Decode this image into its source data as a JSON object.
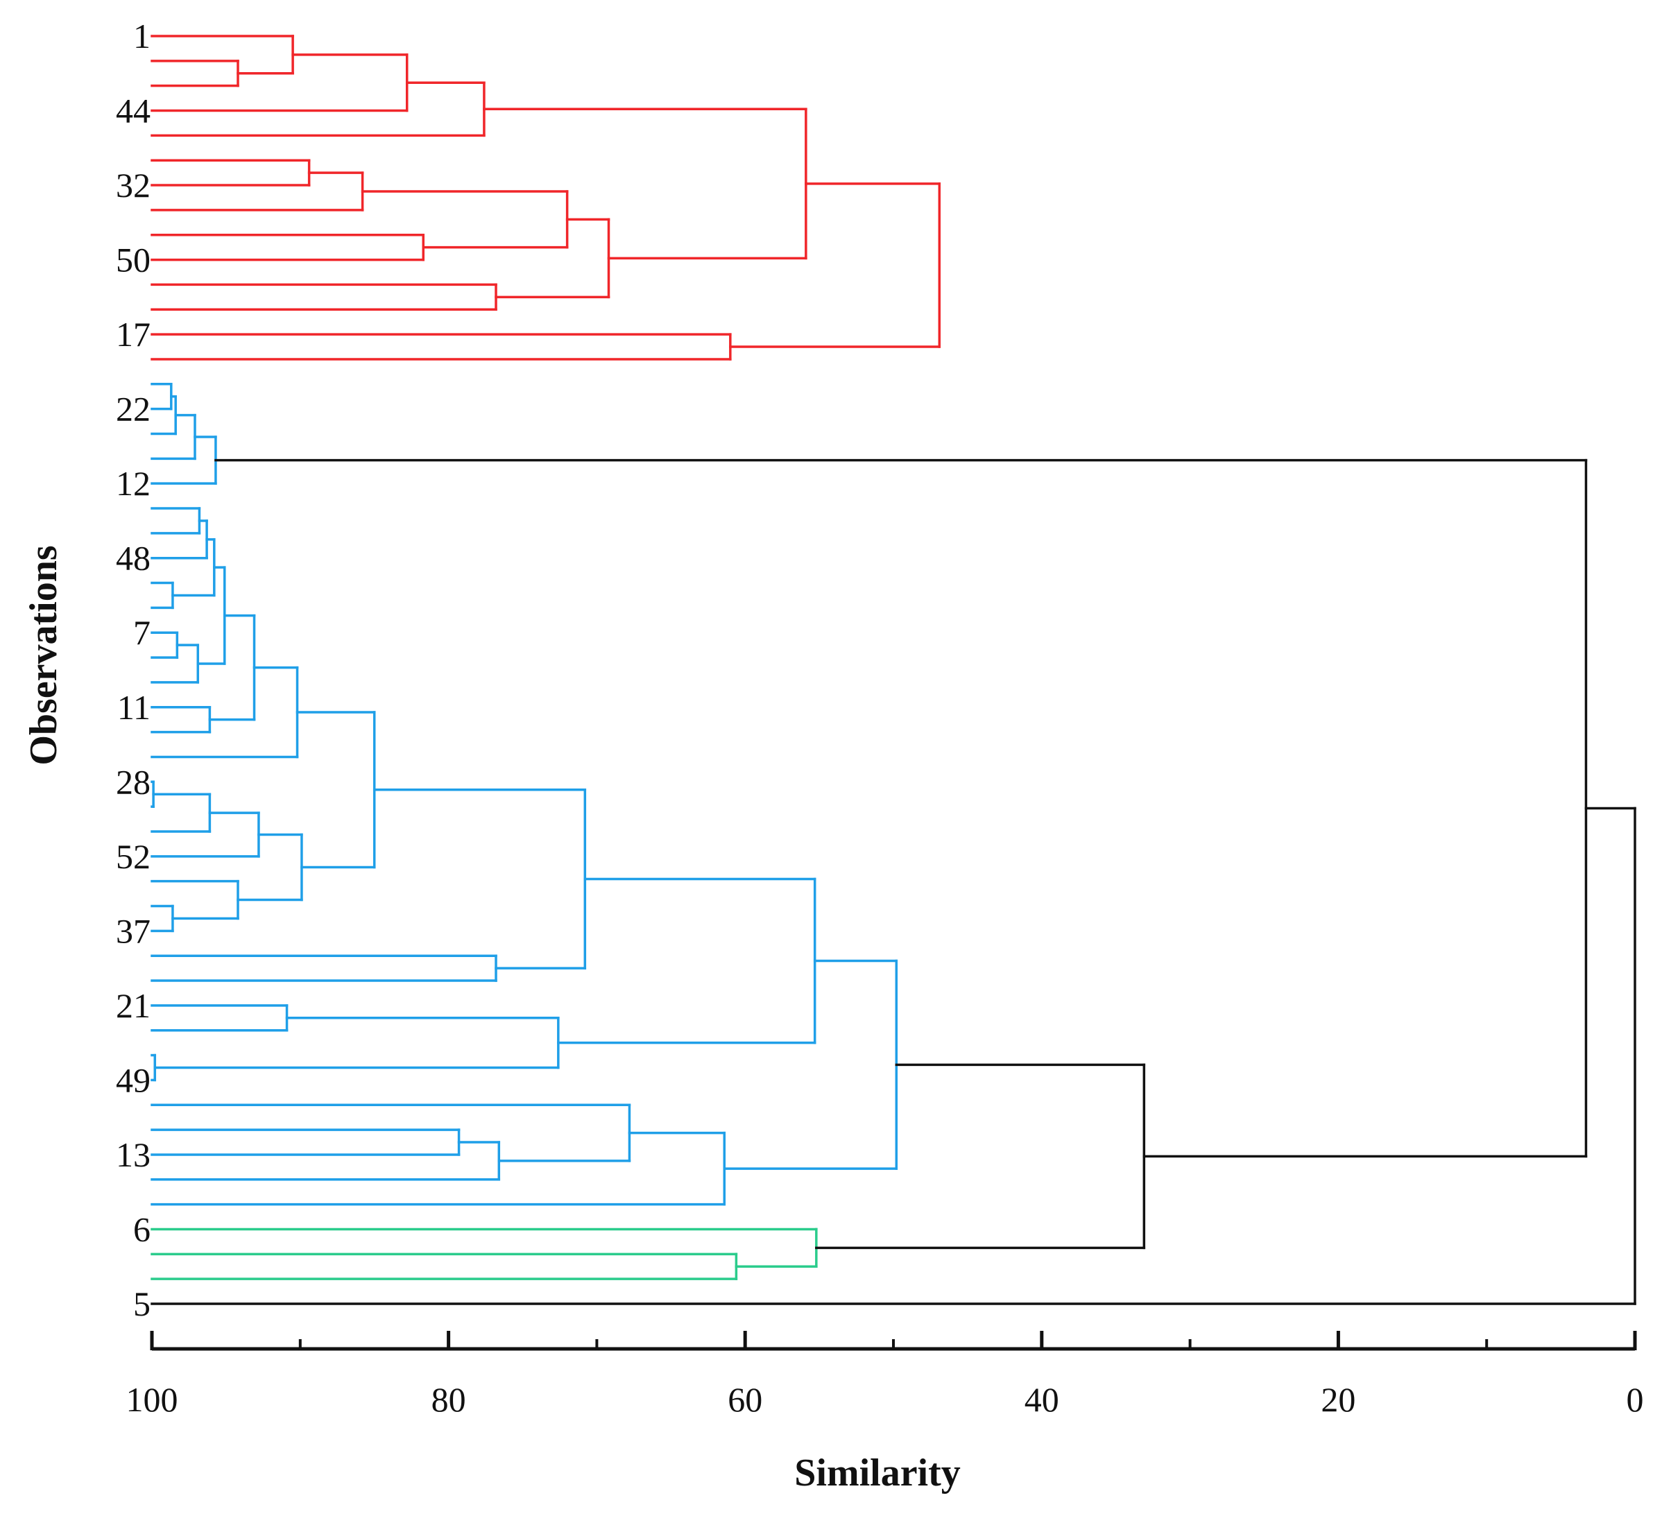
{
  "chart_data": {
    "type": "dendrogram",
    "xlabel": "Similarity",
    "ylabel": "Observations",
    "xlim": [
      100,
      0
    ],
    "x_ticks": [
      100,
      80,
      60,
      40,
      20,
      0
    ],
    "x_minor_ticks": [
      90,
      70,
      50,
      30,
      10
    ],
    "colors": {
      "red_cluster": "#f0262a",
      "blue_cluster": "#1f9fe8",
      "green_cluster": "#2bcc8c",
      "joins": "#111111"
    },
    "observation_labels": [
      {
        "leaf": 0,
        "text": "1"
      },
      {
        "leaf": 3,
        "text": "44"
      },
      {
        "leaf": 6,
        "text": "32"
      },
      {
        "leaf": 9,
        "text": "50"
      },
      {
        "leaf": 12,
        "text": "17"
      },
      {
        "leaf": 15,
        "text": "22"
      },
      {
        "leaf": 18,
        "text": "12"
      },
      {
        "leaf": 21,
        "text": "48"
      },
      {
        "leaf": 24,
        "text": "7"
      },
      {
        "leaf": 27,
        "text": "11"
      },
      {
        "leaf": 30,
        "text": "28"
      },
      {
        "leaf": 33,
        "text": "52"
      },
      {
        "leaf": 36,
        "text": "37"
      },
      {
        "leaf": 39,
        "text": "21"
      },
      {
        "leaf": 42,
        "text": "49"
      },
      {
        "leaf": 45,
        "text": "13"
      },
      {
        "leaf": 48,
        "text": "6"
      },
      {
        "leaf": 51,
        "text": "5"
      }
    ],
    "merges": [
      {
        "a": "L1",
        "b": "L2",
        "sim": 94.2,
        "c": "red"
      },
      {
        "a": "L0",
        "b": "M",
        "sim": 90.5,
        "c": "red"
      },
      {
        "a": "M",
        "b": "L3",
        "sim": 82.8,
        "c": "red"
      },
      {
        "a": "M",
        "b": "L4",
        "sim": 77.6,
        "c": "red"
      },
      {
        "a": "L5",
        "b": "L6",
        "sim": 89.4,
        "c": "red"
      },
      {
        "a": "M",
        "b": "L7",
        "sim": 85.8,
        "c": "red"
      },
      {
        "a": "L8",
        "b": "L9",
        "sim": 81.7,
        "c": "red"
      },
      {
        "a": "M",
        "b": "M",
        "sim": 72.0,
        "c": "red"
      },
      {
        "a": "L10",
        "b": "L11",
        "sim": 76.8,
        "c": "red"
      },
      {
        "a": "M",
        "b": "M",
        "sim": 69.2,
        "c": "red"
      },
      {
        "a": "M",
        "b": "M",
        "sim": 55.9,
        "c": "red"
      },
      {
        "a": "L12",
        "b": "L13",
        "sim": 61.0,
        "c": "red"
      },
      {
        "a": "M",
        "b": "M",
        "sim": 46.9,
        "c": "red"
      },
      {
        "a": "L14",
        "b": "L15",
        "sim": 98.7,
        "c": "blue"
      },
      {
        "a": "M",
        "b": "L16",
        "sim": 98.4,
        "c": "blue"
      },
      {
        "a": "M",
        "b": "L17",
        "sim": 97.1,
        "c": "blue"
      },
      {
        "a": "M",
        "b": "L18",
        "sim": 95.7,
        "c": "blue"
      },
      {
        "a": "L19",
        "b": "L20",
        "sim": 96.8,
        "c": "blue"
      },
      {
        "a": "M",
        "b": "L21",
        "sim": 96.3,
        "c": "blue"
      },
      {
        "a": "L22",
        "b": "L23",
        "sim": 98.6,
        "c": "blue"
      },
      {
        "a": "M",
        "b": "M",
        "sim": 95.8,
        "c": "blue"
      },
      {
        "a": "L24",
        "b": "L25",
        "sim": 98.3,
        "c": "blue"
      },
      {
        "a": "M",
        "b": "L26",
        "sim": 96.9,
        "c": "blue"
      },
      {
        "a": "M",
        "b": "M",
        "sim": 95.1,
        "c": "blue"
      },
      {
        "a": "L27",
        "b": "L28",
        "sim": 96.1,
        "c": "blue"
      },
      {
        "a": "M",
        "b": "M",
        "sim": 93.1,
        "c": "blue"
      },
      {
        "a": "M",
        "b": "L29",
        "sim": 90.2,
        "c": "blue"
      },
      {
        "a": "L30",
        "b": "L31",
        "sim": 99.9,
        "c": "blue"
      },
      {
        "a": "M",
        "b": "L32",
        "sim": 96.1,
        "c": "blue"
      },
      {
        "a": "M",
        "b": "L33",
        "sim": 92.8,
        "c": "blue"
      },
      {
        "a": "L35",
        "b": "L36",
        "sim": 98.6,
        "c": "blue"
      },
      {
        "a": "L34",
        "b": "M",
        "sim": 94.2,
        "c": "blue"
      },
      {
        "a": "M",
        "b": "M",
        "sim": 89.9,
        "c": "blue"
      },
      {
        "a": "M",
        "b": "M",
        "sim": 85.0,
        "c": "blue"
      },
      {
        "a": "L37",
        "b": "L38",
        "sim": 76.8,
        "c": "blue"
      },
      {
        "a": "M",
        "b": "M",
        "sim": 70.8,
        "c": "blue"
      },
      {
        "a": "L39",
        "b": "L40",
        "sim": 90.9,
        "c": "blue"
      },
      {
        "a": "L41",
        "b": "L42",
        "sim": 99.8,
        "c": "blue"
      },
      {
        "a": "M",
        "b": "M",
        "sim": 72.6,
        "c": "blue"
      },
      {
        "a": "M",
        "b": "M",
        "sim": 55.3,
        "c": "blue"
      },
      {
        "a": "L44",
        "b": "L45",
        "sim": 79.3,
        "c": "blue"
      },
      {
        "a": "M",
        "b": "L46",
        "sim": 76.6,
        "c": "blue"
      },
      {
        "a": "L43",
        "b": "M",
        "sim": 67.8,
        "c": "blue"
      },
      {
        "a": "M",
        "b": "L47",
        "sim": 61.4,
        "c": "blue"
      },
      {
        "a": "M",
        "b": "M",
        "sim": 49.8,
        "c": "blue"
      },
      {
        "a": "L49",
        "b": "L50",
        "sim": 60.6,
        "c": "green"
      },
      {
        "a": "L48",
        "b": "M",
        "sim": 55.2,
        "c": "green"
      },
      {
        "a": "M",
        "b": "M",
        "sim": 33.1,
        "c": "black"
      },
      {
        "a": "M",
        "b": "M",
        "sim": 3.3,
        "c": "black"
      },
      {
        "a": "M",
        "b": "L51",
        "sim": 0.0,
        "c": "black"
      }
    ],
    "leaf_count": 52
  }
}
